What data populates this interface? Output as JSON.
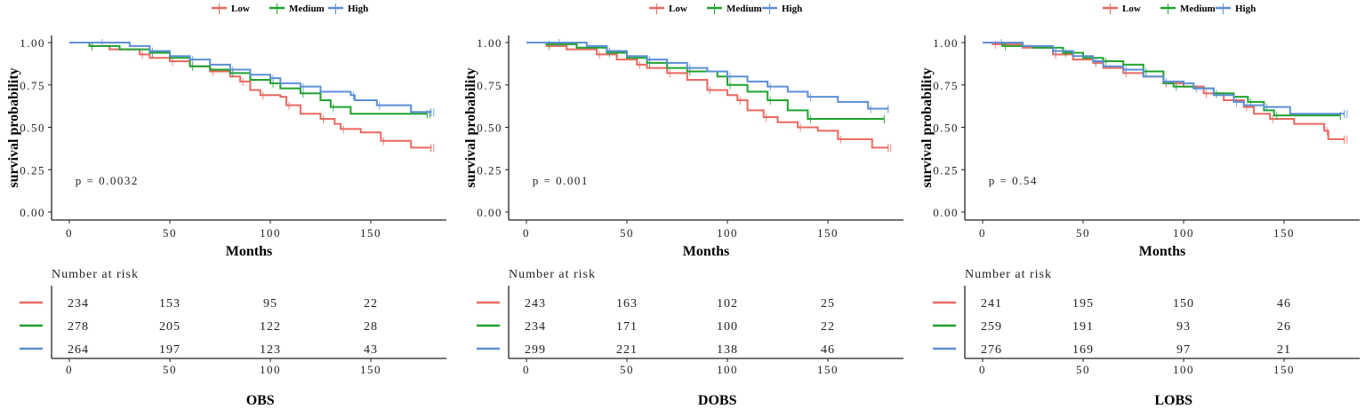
{
  "chart_data": [
    {
      "type": "line",
      "title": "OBS",
      "xlabel": "Months",
      "ylabel": "survival probability",
      "xlim": [
        0,
        180
      ],
      "ylim": [
        0,
        1
      ],
      "xticks": [
        "0",
        "50",
        "100",
        "150"
      ],
      "yticks": [
        "0.00",
        "0.25",
        "0.50",
        "0.75",
        "1.00"
      ],
      "pvalue": "p = 0.0032",
      "legend": [
        "Low",
        "Medium",
        "High"
      ],
      "risk_title": "Number at risk",
      "series": [
        {
          "name": "Low",
          "color": "#E8695F",
          "points": [
            [
              0,
              1
            ],
            [
              10,
              0.98
            ],
            [
              20,
              0.96
            ],
            [
              35,
              0.93
            ],
            [
              40,
              0.91
            ],
            [
              50,
              0.89
            ],
            [
              60,
              0.86
            ],
            [
              70,
              0.83
            ],
            [
              80,
              0.8
            ],
            [
              85,
              0.77
            ],
            [
              90,
              0.72
            ],
            [
              95,
              0.69
            ],
            [
              105,
              0.68
            ],
            [
              108,
              0.63
            ],
            [
              115,
              0.58
            ],
            [
              125,
              0.55
            ],
            [
              132,
              0.52
            ],
            [
              135,
              0.49
            ],
            [
              145,
              0.47
            ],
            [
              155,
              0.42
            ],
            [
              170,
              0.38
            ],
            [
              180,
              0.38
            ]
          ],
          "at_risk": [
            "234",
            "153",
            "95",
            "22"
          ]
        },
        {
          "name": "Medium",
          "color": "#1FA22E",
          "points": [
            [
              0,
              1
            ],
            [
              10,
              0.98
            ],
            [
              25,
              0.96
            ],
            [
              40,
              0.94
            ],
            [
              50,
              0.91
            ],
            [
              60,
              0.86
            ],
            [
              70,
              0.84
            ],
            [
              80,
              0.82
            ],
            [
              90,
              0.78
            ],
            [
              100,
              0.76
            ],
            [
              105,
              0.73
            ],
            [
              115,
              0.7
            ],
            [
              125,
              0.66
            ],
            [
              130,
              0.62
            ],
            [
              140,
              0.58
            ],
            [
              178,
              0.58
            ]
          ],
          "at_risk": [
            "278",
            "205",
            "122",
            "28"
          ]
        },
        {
          "name": "High",
          "color": "#5B8FD6",
          "points": [
            [
              0,
              1
            ],
            [
              15,
              1
            ],
            [
              30,
              0.98
            ],
            [
              40,
              0.95
            ],
            [
              50,
              0.92
            ],
            [
              60,
              0.9
            ],
            [
              70,
              0.87
            ],
            [
              80,
              0.84
            ],
            [
              90,
              0.81
            ],
            [
              100,
              0.79
            ],
            [
              105,
              0.76
            ],
            [
              115,
              0.74
            ],
            [
              125,
              0.71
            ],
            [
              140,
              0.69
            ],
            [
              142,
              0.66
            ],
            [
              153,
              0.63
            ],
            [
              170,
              0.59
            ],
            [
              180,
              0.59
            ]
          ],
          "at_risk": [
            "264",
            "197",
            "123",
            "43"
          ]
        }
      ]
    },
    {
      "type": "line",
      "title": "DOBS",
      "xlabel": "Months",
      "ylabel": "survival probability",
      "xlim": [
        0,
        180
      ],
      "ylim": [
        0,
        1
      ],
      "xticks": [
        "0",
        "50",
        "100",
        "150"
      ],
      "yticks": [
        "0.00",
        "0.25",
        "0.50",
        "0.75",
        "1.00"
      ],
      "pvalue": "p = 0.001",
      "legend": [
        "Low",
        "Medium",
        "High"
      ],
      "risk_title": "Number at risk",
      "series": [
        {
          "name": "Low",
          "color": "#E8695F",
          "points": [
            [
              0,
              1
            ],
            [
              10,
              0.98
            ],
            [
              20,
              0.96
            ],
            [
              35,
              0.93
            ],
            [
              45,
              0.9
            ],
            [
              55,
              0.87
            ],
            [
              60,
              0.85
            ],
            [
              70,
              0.82
            ],
            [
              80,
              0.78
            ],
            [
              90,
              0.72
            ],
            [
              100,
              0.69
            ],
            [
              105,
              0.66
            ],
            [
              110,
              0.6
            ],
            [
              118,
              0.56
            ],
            [
              125,
              0.53
            ],
            [
              135,
              0.5
            ],
            [
              145,
              0.48
            ],
            [
              155,
              0.43
            ],
            [
              172,
              0.38
            ],
            [
              180,
              0.38
            ]
          ],
          "at_risk": [
            "243",
            "163",
            "102",
            "25"
          ]
        },
        {
          "name": "Medium",
          "color": "#1FA22E",
          "points": [
            [
              0,
              1
            ],
            [
              10,
              0.99
            ],
            [
              25,
              0.97
            ],
            [
              40,
              0.94
            ],
            [
              50,
              0.91
            ],
            [
              60,
              0.88
            ],
            [
              70,
              0.85
            ],
            [
              80,
              0.83
            ],
            [
              95,
              0.8
            ],
            [
              100,
              0.75
            ],
            [
              110,
              0.71
            ],
            [
              120,
              0.66
            ],
            [
              130,
              0.6
            ],
            [
              140,
              0.55
            ],
            [
              178,
              0.55
            ]
          ],
          "at_risk": [
            "234",
            "171",
            "100",
            "22"
          ]
        },
        {
          "name": "High",
          "color": "#5B8FD6",
          "points": [
            [
              0,
              1
            ],
            [
              15,
              1
            ],
            [
              30,
              0.98
            ],
            [
              40,
              0.95
            ],
            [
              50,
              0.92
            ],
            [
              60,
              0.9
            ],
            [
              70,
              0.88
            ],
            [
              80,
              0.85
            ],
            [
              90,
              0.83
            ],
            [
              100,
              0.8
            ],
            [
              110,
              0.77
            ],
            [
              120,
              0.74
            ],
            [
              130,
              0.71
            ],
            [
              140,
              0.68
            ],
            [
              155,
              0.65
            ],
            [
              170,
              0.61
            ],
            [
              180,
              0.61
            ]
          ],
          "at_risk": [
            "299",
            "221",
            "138",
            "46"
          ]
        }
      ]
    },
    {
      "type": "line",
      "title": "LOBS",
      "xlabel": "Months",
      "ylabel": "survival probability",
      "xlim": [
        0,
        180
      ],
      "ylim": [
        0,
        1
      ],
      "xticks": [
        "0",
        "50",
        "100",
        "150"
      ],
      "yticks": [
        "0.00",
        "0.25",
        "0.50",
        "0.75",
        "1.00"
      ],
      "pvalue": "p = 0.54",
      "legend": [
        "Low",
        "Medium",
        "High"
      ],
      "risk_title": "Number at risk",
      "series": [
        {
          "name": "Low",
          "color": "#E8695F",
          "points": [
            [
              0,
              1
            ],
            [
              5,
              0.99
            ],
            [
              20,
              0.97
            ],
            [
              35,
              0.93
            ],
            [
              45,
              0.9
            ],
            [
              55,
              0.88
            ],
            [
              60,
              0.85
            ],
            [
              70,
              0.82
            ],
            [
              80,
              0.8
            ],
            [
              90,
              0.76
            ],
            [
              100,
              0.74
            ],
            [
              110,
              0.7
            ],
            [
              120,
              0.66
            ],
            [
              130,
              0.62
            ],
            [
              135,
              0.58
            ],
            [
              143,
              0.55
            ],
            [
              155,
              0.52
            ],
            [
              170,
              0.48
            ],
            [
              172,
              0.43
            ],
            [
              180,
              0.43
            ]
          ],
          "at_risk": [
            "241",
            "195",
            "150",
            "46"
          ]
        },
        {
          "name": "Medium",
          "color": "#1FA22E",
          "points": [
            [
              0,
              1
            ],
            [
              10,
              0.98
            ],
            [
              25,
              0.97
            ],
            [
              40,
              0.94
            ],
            [
              50,
              0.91
            ],
            [
              60,
              0.89
            ],
            [
              70,
              0.87
            ],
            [
              80,
              0.83
            ],
            [
              90,
              0.76
            ],
            [
              95,
              0.74
            ],
            [
              105,
              0.73
            ],
            [
              115,
              0.7
            ],
            [
              125,
              0.68
            ],
            [
              132,
              0.65
            ],
            [
              140,
              0.6
            ],
            [
              145,
              0.57
            ],
            [
              178,
              0.57
            ]
          ],
          "at_risk": [
            "259",
            "191",
            "93",
            "26"
          ]
        },
        {
          "name": "High",
          "color": "#5B8FD6",
          "points": [
            [
              0,
              1
            ],
            [
              8,
              1
            ],
            [
              20,
              0.98
            ],
            [
              35,
              0.95
            ],
            [
              45,
              0.92
            ],
            [
              55,
              0.89
            ],
            [
              60,
              0.86
            ],
            [
              70,
              0.84
            ],
            [
              80,
              0.8
            ],
            [
              90,
              0.77
            ],
            [
              100,
              0.76
            ],
            [
              105,
              0.73
            ],
            [
              115,
              0.69
            ],
            [
              125,
              0.65
            ],
            [
              130,
              0.63
            ],
            [
              140,
              0.62
            ],
            [
              153,
              0.58
            ],
            [
              180,
              0.58
            ]
          ],
          "at_risk": [
            "276",
            "169",
            "97",
            "21"
          ]
        }
      ]
    }
  ]
}
